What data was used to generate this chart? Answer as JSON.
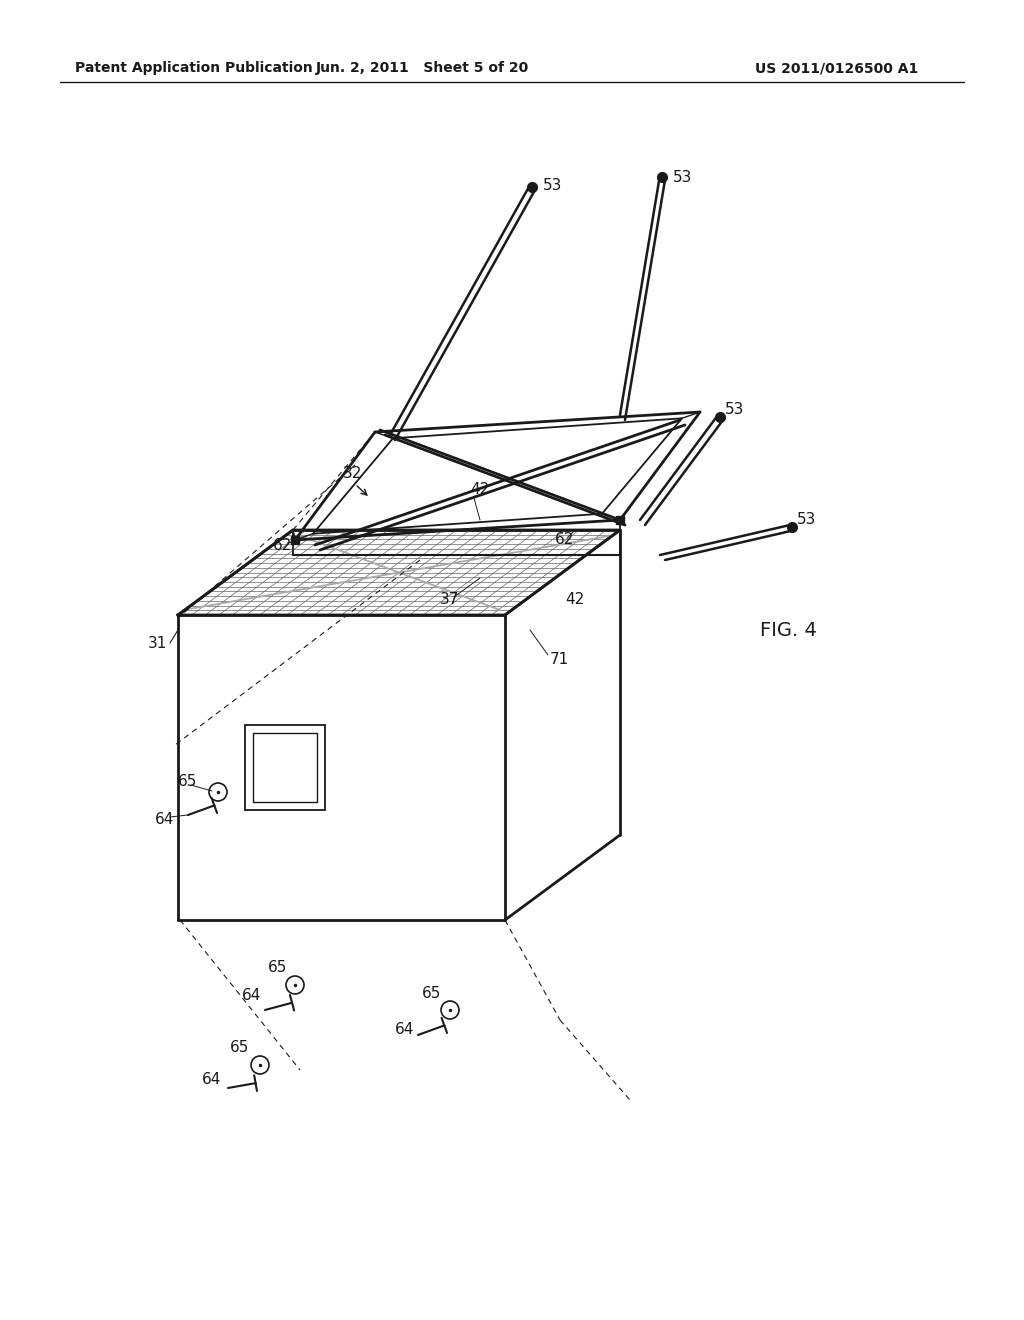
{
  "background_color": "#ffffff",
  "header_left": "Patent Application Publication",
  "header_center": "Jun. 2, 2011   Sheet 5 of 20",
  "header_right": "US 2011/0126500 A1",
  "fig_label": "FIG. 4"
}
